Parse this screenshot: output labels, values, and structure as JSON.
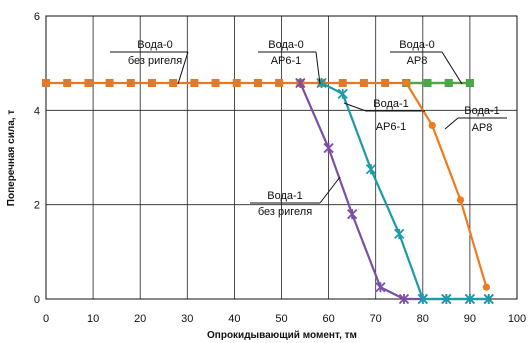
{
  "chart_data": {
    "type": "line",
    "title": "",
    "xlabel": "Опрокидывающий момент, тм",
    "ylabel": "Поперечная сила, т",
    "xlim": [
      0,
      100
    ],
    "ylim": [
      0,
      6
    ],
    "x_ticks": [
      0,
      10,
      20,
      30,
      40,
      50,
      60,
      70,
      80,
      90,
      100
    ],
    "y_ticks": [
      0,
      2,
      4,
      6
    ],
    "grid": true,
    "series": [
      {
        "name": "Вода-0 без ригеля / Вода-0 АР6-1 / Вода-0 АР8",
        "color": "#e07a2a",
        "marker": "square",
        "x": [
          0,
          4.5,
          9,
          13.5,
          18,
          22.5,
          27,
          31.5,
          36,
          40.5,
          45,
          49.5,
          54,
          58.5,
          63,
          67.5,
          72,
          76.5,
          81,
          85.5,
          90
        ],
        "y": [
          4.58,
          4.58,
          4.58,
          4.58,
          4.58,
          4.58,
          4.58,
          4.58,
          4.58,
          4.58,
          4.58,
          4.58,
          4.58,
          4.58,
          4.58,
          4.58,
          4.58,
          4.58,
          4.58,
          4.58,
          4.58
        ]
      },
      {
        "name": "Вода-0 АР8",
        "color": "#4aa84a",
        "marker": "square",
        "x": [
          76.5,
          81,
          85.5,
          90
        ],
        "y": [
          4.58,
          4.58,
          4.58,
          4.58
        ]
      },
      {
        "name": "Вода-1 без ригеля",
        "color": "#7b4fa6",
        "marker": "star",
        "x": [
          54,
          60,
          65,
          71,
          76,
          80,
          85,
          90,
          94
        ],
        "y": [
          4.58,
          3.2,
          1.8,
          0.25,
          0,
          0,
          0,
          0,
          0
        ]
      },
      {
        "name": "Вода-1 АР6-1",
        "color": "#1c9ba8",
        "marker": "star",
        "x": [
          58.5,
          63,
          69,
          75,
          80,
          85,
          90,
          94
        ],
        "y": [
          4.58,
          4.35,
          2.75,
          1.38,
          0,
          0,
          0,
          0
        ]
      },
      {
        "name": "Вода-1 АР8",
        "color": "#f07a1e",
        "marker": "circle",
        "x": [
          76.5,
          82,
          88,
          93.5
        ],
        "y": [
          4.58,
          3.68,
          2.1,
          0.25
        ]
      }
    ],
    "annotations": [
      {
        "line1": "Вода-0",
        "line2": "без ригеля"
      },
      {
        "line1": "Вода-0",
        "line2": "АР6-1"
      },
      {
        "line1": "Вода-0",
        "line2": "АР8"
      },
      {
        "line1": "Вода-1",
        "line2": "АР6-1"
      },
      {
        "line1": "Вода-1",
        "line2": "АР8"
      },
      {
        "line1": "Вода-1",
        "line2": "без ригеля"
      }
    ]
  }
}
